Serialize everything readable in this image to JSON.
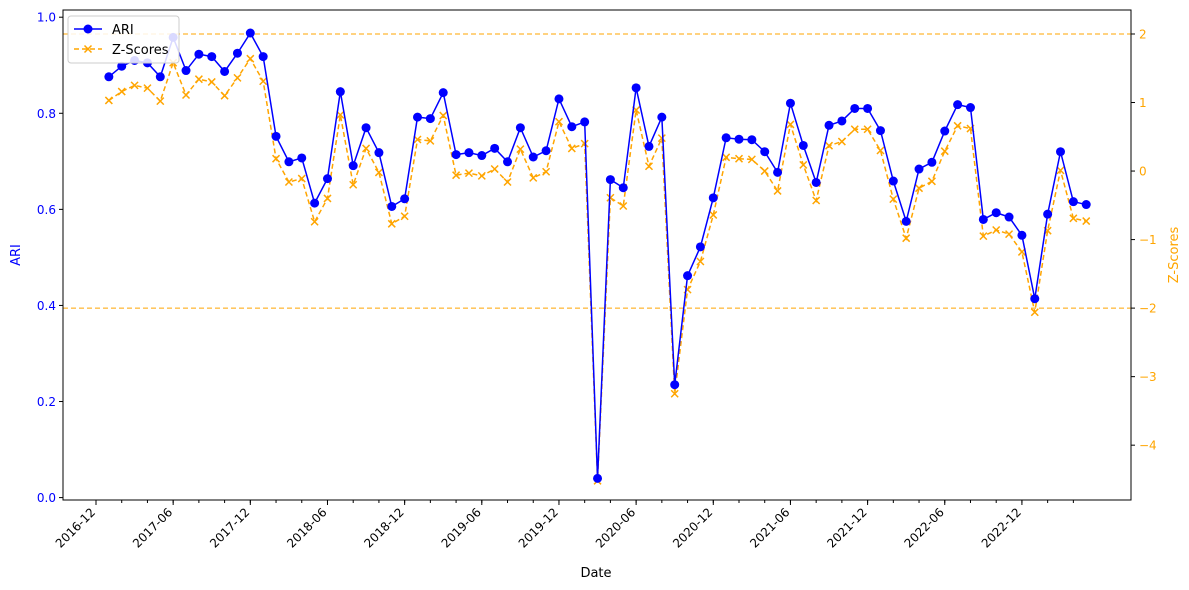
{
  "chart_data": {
    "type": "line",
    "xlabel": "Date",
    "ylabel_left": "ARI",
    "ylabel_right": "Z-Scores",
    "x_start": "2017-01",
    "x_ticks": [
      "2016-12",
      "2017-06",
      "2017-12",
      "2018-06",
      "2018-12",
      "2019-06",
      "2019-12",
      "2020-06",
      "2020-12",
      "2021-06",
      "2021-12",
      "2022-06",
      "2022-12"
    ],
    "ylim_left": [
      -0.005,
      1.015
    ],
    "yticks_left": [
      "0.0",
      "0.2",
      "0.4",
      "0.6",
      "0.8",
      "1.0"
    ],
    "ylim_right": [
      -4.8,
      2.35
    ],
    "yticks_right": [
      "−4",
      "−3",
      "−2",
      "−1",
      "0",
      "1",
      "2"
    ],
    "hlines_right": [
      2,
      -2
    ],
    "grid": false,
    "legend": {
      "placement": "upper-left",
      "entries": [
        "ARI",
        "Z-Scores"
      ]
    },
    "series": [
      {
        "name": "ARI",
        "axis": "left",
        "color": "#0000ff",
        "marker": "circle",
        "linestyle": "solid",
        "values": [
          0.876,
          0.898,
          0.91,
          0.905,
          0.876,
          0.958,
          0.889,
          0.923,
          0.918,
          0.887,
          0.925,
          0.967,
          0.918,
          0.752,
          0.699,
          0.707,
          0.613,
          0.664,
          0.845,
          0.691,
          0.77,
          0.718,
          0.606,
          0.622,
          0.792,
          0.789,
          0.843,
          0.714,
          0.718,
          0.712,
          0.727,
          0.699,
          0.77,
          0.709,
          0.722,
          0.83,
          0.772,
          0.782,
          0.04,
          0.662,
          0.645,
          0.853,
          0.731,
          0.792,
          0.235,
          0.462,
          0.522,
          0.624,
          0.749,
          0.746,
          0.745,
          0.72,
          0.677,
          0.821,
          0.733,
          0.656,
          0.775,
          0.784,
          0.81,
          0.81,
          0.764,
          0.659,
          0.575,
          0.684,
          0.698,
          0.763,
          0.818,
          0.812,
          0.579,
          0.593,
          0.584,
          0.546,
          0.414,
          0.59,
          0.72,
          0.616,
          0.61
        ]
      },
      {
        "name": "Z-Scores",
        "axis": "right",
        "color": "#ffa500",
        "marker": "x",
        "linestyle": "dashed",
        "values": [
          1.03,
          1.16,
          1.25,
          1.21,
          1.02,
          1.58,
          1.11,
          1.34,
          1.3,
          1.1,
          1.36,
          1.64,
          1.31,
          0.18,
          -0.16,
          -0.11,
          -0.74,
          -0.4,
          0.82,
          -0.2,
          0.33,
          -0.02,
          -0.77,
          -0.66,
          0.46,
          0.44,
          0.81,
          -0.06,
          -0.03,
          -0.07,
          0.03,
          -0.16,
          0.32,
          -0.1,
          -0.01,
          0.72,
          0.33,
          0.4,
          -4.52,
          -0.39,
          -0.51,
          0.89,
          0.07,
          0.48,
          -3.25,
          -1.73,
          -1.32,
          -0.64,
          0.2,
          0.18,
          0.17,
          0.0,
          -0.29,
          0.68,
          0.09,
          -0.43,
          0.37,
          0.43,
          0.61,
          0.61,
          0.3,
          -0.41,
          -0.98,
          -0.25,
          -0.15,
          0.29,
          0.66,
          0.62,
          -0.95,
          -0.86,
          -0.92,
          -1.18,
          -2.06,
          -0.87,
          0.01,
          -0.69,
          -0.73
        ]
      }
    ]
  }
}
